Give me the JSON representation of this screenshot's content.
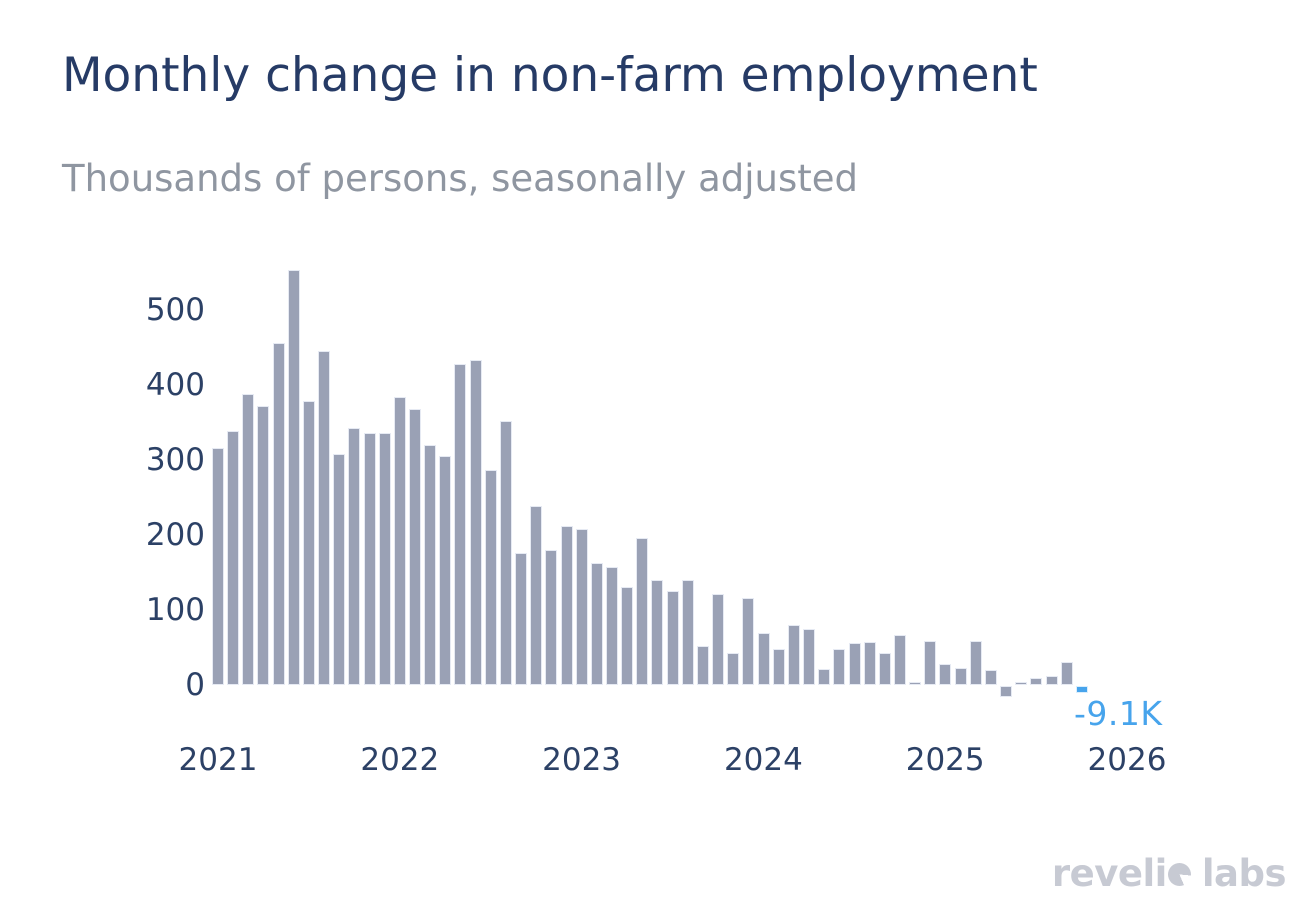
{
  "header": {
    "title": "Monthly change in non-farm employment",
    "subtitle": "Thousands of persons, seasonally adjusted"
  },
  "chart_data": {
    "type": "bar",
    "title": "Monthly change in non-farm employment",
    "subtitle": "Thousands of persons, seasonally adjusted",
    "unit": "thousands of persons, seasonally adjusted",
    "frequency": "monthly",
    "start_month": "2021-01",
    "grid": false,
    "legend": false,
    "x_axis": {
      "tick_labels": [
        "2021",
        "2022",
        "2023",
        "2024",
        "2025",
        "2026"
      ]
    },
    "y_axis": {
      "tick_labels": [
        "500",
        "400",
        "300",
        "200",
        "100",
        "0"
      ],
      "tick_values": [
        500,
        400,
        300,
        200,
        100,
        0
      ],
      "range": [
        -20,
        570
      ]
    },
    "series": [
      {
        "name": "Monthly change in non-farm employment",
        "values": [
          315,
          338,
          387,
          372,
          456,
          553,
          378,
          445,
          308,
          342,
          336,
          335,
          384,
          368,
          320,
          305,
          427,
          433,
          286,
          352,
          175,
          238,
          179,
          211,
          207,
          162,
          157,
          130,
          196,
          139,
          125,
          140,
          51,
          121,
          42,
          116,
          69,
          47,
          79,
          74,
          21,
          47,
          56,
          57,
          42,
          66,
          3,
          58,
          28,
          22,
          58,
          19,
          -14,
          4,
          9,
          12,
          30,
          -9.1
        ]
      }
    ],
    "highlight": {
      "index": 57,
      "value": -9.1,
      "label": "-9.1K"
    },
    "colors": {
      "bar": "#9aa1b5",
      "bar_border": "#e6eaf3",
      "highlight": "#47a4ec",
      "highlight_border": "#dbeefc",
      "axis_text": "#2c4166"
    }
  },
  "annotation": {
    "last_value_label": "-9.1K",
    "color": "#47a4ec"
  },
  "footer": {
    "logo_text": "revelio labs",
    "logo_part1": "reveli",
    "logo_part2": "labs",
    "logo_color": "#c7cad3"
  }
}
